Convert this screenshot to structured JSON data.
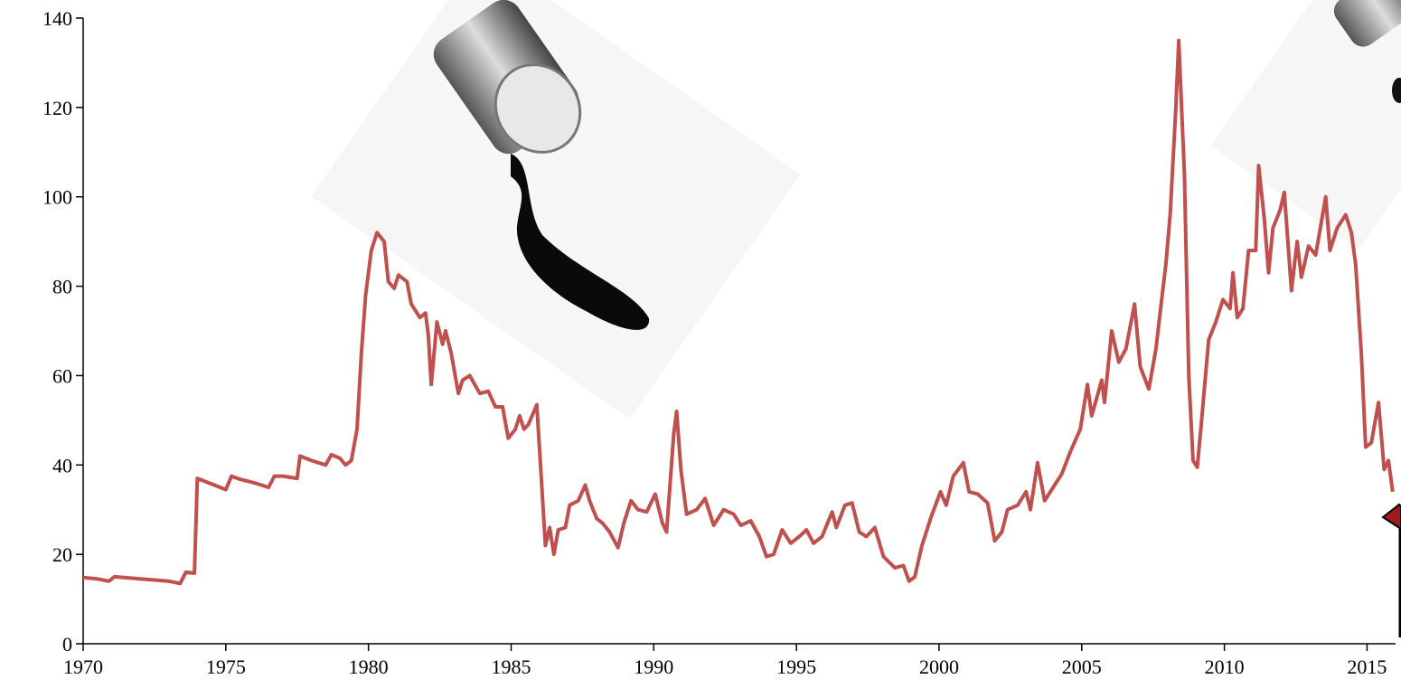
{
  "chart_data": {
    "type": "line",
    "xlim": [
      1970,
      2016
    ],
    "ylim": [
      0,
      140
    ],
    "xticks": [
      1970,
      1975,
      1980,
      1985,
      1990,
      1995,
      2000,
      2005,
      2010,
      2015
    ],
    "yticks": [
      0,
      20,
      40,
      60,
      80,
      100,
      120,
      140
    ],
    "series": [
      {
        "color": "#c0504d",
        "x": [
          1970,
          1970.5,
          1970.9,
          1971.1,
          1972,
          1973,
          1973.4,
          1973.6,
          1973.9,
          1974.0,
          1974.8,
          1975.0,
          1975.2,
          1975.5,
          1976,
          1976.5,
          1976.7,
          1977,
          1977.5,
          1977.6,
          1978,
          1978.5,
          1978.7,
          1979,
          1979.2,
          1979.4,
          1979.6,
          1979.75,
          1979.9,
          1980.1,
          1980.3,
          1980.55,
          1980.7,
          1980.9,
          1981.05,
          1981.35,
          1981.5,
          1981.8,
          1982,
          1982.1,
          1982.2,
          1982.4,
          1982.6,
          1982.7,
          1982.9,
          1983.15,
          1983.3,
          1983.55,
          1983.9,
          1984.2,
          1984.45,
          1984.7,
          1984.9,
          1985.15,
          1985.3,
          1985.45,
          1985.6,
          1985.9,
          1986.05,
          1986.2,
          1986.35,
          1986.5,
          1986.65,
          1986.9,
          1987.05,
          1987.35,
          1987.6,
          1987.75,
          1988,
          1988.2,
          1988.45,
          1988.75,
          1988.95,
          1989.2,
          1989.45,
          1989.75,
          1990.05,
          1990.3,
          1990.45,
          1990.7,
          1990.8,
          1990.95,
          1991.15,
          1991.5,
          1991.8,
          1992.1,
          1992.45,
          1992.8,
          1993.05,
          1993.4,
          1993.7,
          1993.95,
          1994.2,
          1994.5,
          1994.8,
          1995.1,
          1995.35,
          1995.6,
          1995.9,
          1996.25,
          1996.4,
          1996.7,
          1996.95,
          1997.2,
          1997.45,
          1997.75,
          1998.05,
          1998.45,
          1998.75,
          1998.95,
          1999.15,
          1999.4,
          1999.7,
          2000.05,
          2000.25,
          2000.5,
          2000.85,
          2001.05,
          2001.35,
          2001.7,
          2001.95,
          2002.2,
          2002.4,
          2002.75,
          2003.05,
          2003.2,
          2003.45,
          2003.7,
          2004.0,
          2004.3,
          2004.6,
          2004.95,
          2005.2,
          2005.35,
          2005.7,
          2005.8,
          2006.05,
          2006.3,
          2006.55,
          2006.85,
          2007.05,
          2007.35,
          2007.6,
          2007.8,
          2007.95,
          2008.1,
          2008.3,
          2008.4,
          2008.6,
          2008.75,
          2008.9,
          2009.05,
          2009.2,
          2009.45,
          2009.7,
          2009.95,
          2010.2,
          2010.3,
          2010.45,
          2010.65,
          2010.85,
          2011.1,
          2011.2,
          2011.4,
          2011.55,
          2011.7,
          2011.95,
          2012.1,
          2012.35,
          2012.55,
          2012.7,
          2012.95,
          2013.2,
          2013.55,
          2013.7,
          2013.95,
          2014.25,
          2014.45,
          2014.6,
          2014.8,
          2014.95,
          2015.15,
          2015.4,
          2015.6,
          2015.75,
          2015.9
        ],
        "values": [
          14.8,
          14.5,
          14.0,
          15.0,
          14.5,
          14.0,
          13.5,
          16,
          15.8,
          37,
          35,
          34.5,
          37.5,
          36.8,
          36,
          35,
          37.5,
          37.5,
          37,
          42,
          41,
          40,
          42.3,
          41.5,
          40,
          41,
          48,
          65,
          78,
          88,
          92,
          90,
          81,
          79.5,
          82.5,
          81,
          76,
          73,
          74,
          69,
          58,
          72,
          67,
          70,
          65,
          56,
          59,
          60,
          56,
          56.5,
          53,
          53,
          46,
          48,
          51,
          48,
          49,
          53.5,
          38,
          22,
          26,
          20,
          25.5,
          26,
          31,
          32,
          35.5,
          32,
          28,
          27,
          25,
          21.5,
          27,
          32,
          30,
          29.5,
          33.5,
          27,
          25,
          47,
          52,
          39,
          29,
          30,
          32.5,
          26.5,
          30,
          29,
          26.5,
          27.5,
          24,
          19.5,
          20,
          25.5,
          22.5,
          24,
          25.5,
          22.5,
          24,
          29.5,
          26,
          31,
          31.5,
          25,
          24,
          26,
          19.5,
          17,
          17.5,
          14,
          15,
          22,
          28,
          34,
          31,
          37.5,
          40.5,
          34,
          33.5,
          31.5,
          23,
          25,
          30,
          31,
          34,
          30,
          40.5,
          32,
          35,
          38,
          43,
          48,
          58,
          51,
          59,
          54,
          70,
          63,
          66,
          76,
          62,
          57,
          66,
          77,
          85,
          96,
          120,
          135,
          105,
          60,
          41,
          39.5,
          50,
          68,
          72,
          77,
          75,
          83,
          73,
          75,
          88,
          88,
          107,
          95,
          83,
          93,
          97,
          101,
          79,
          90,
          82,
          89,
          87,
          100,
          88,
          93,
          96,
          92,
          85,
          65,
          44,
          45,
          54,
          39,
          41,
          34
        ]
      }
    ]
  }
}
